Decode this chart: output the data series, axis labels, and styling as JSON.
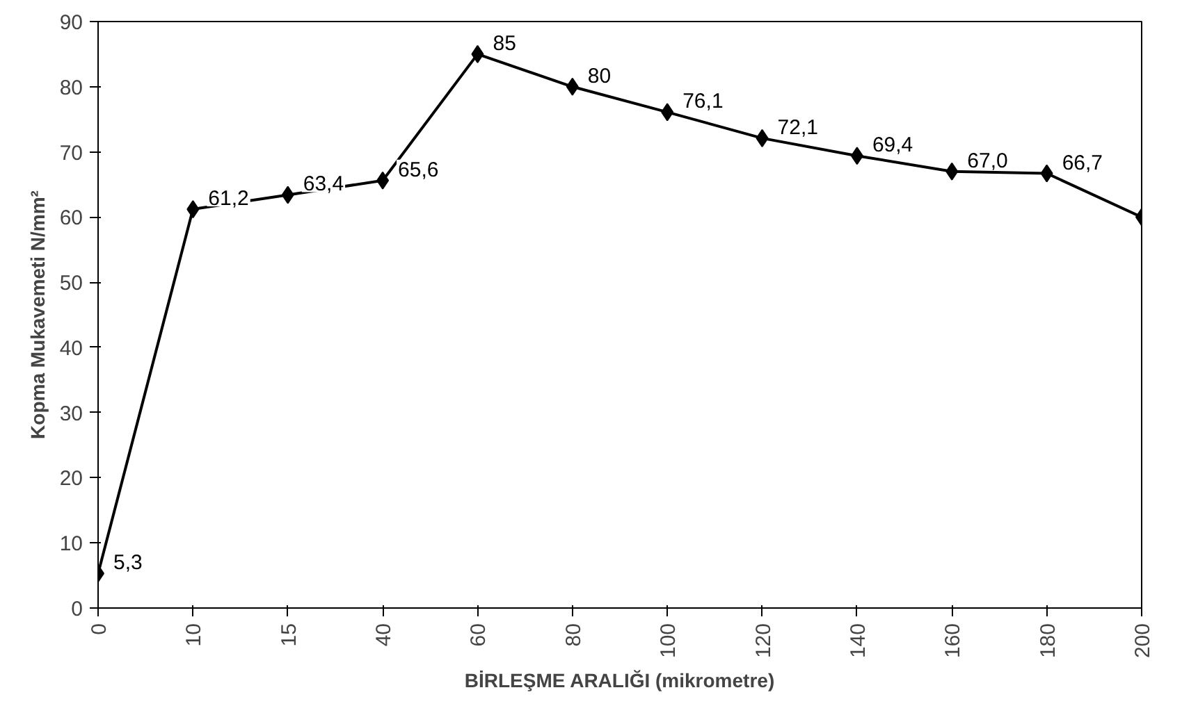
{
  "chart_data": {
    "type": "line",
    "xlabel": "BİRLEŞME ARALIĞI (mikrometre)",
    "ylabel": "Kopma Mukavemeti N/mm²",
    "categories": [
      "0",
      "10",
      "15",
      "40",
      "60",
      "80",
      "100",
      "120",
      "140",
      "160",
      "180",
      "200"
    ],
    "series": [
      {
        "color": "#000000",
        "values": [
          5.3,
          61.2,
          63.4,
          65.6,
          85,
          80,
          76.1,
          72.1,
          69.4,
          67.0,
          66.7,
          60
        ],
        "value_labels": [
          "5,3",
          "61,2",
          "63,4",
          "65,6",
          "85",
          "80",
          "76,1",
          "72,1",
          "69,4",
          "67,0",
          "66,7",
          null
        ]
      }
    ],
    "ylim": [
      0,
      90
    ],
    "yticks": [
      0,
      10,
      20,
      30,
      40,
      50,
      60,
      70,
      80,
      90
    ],
    "grid": false,
    "marker": "diamond",
    "line_style": "solid"
  }
}
